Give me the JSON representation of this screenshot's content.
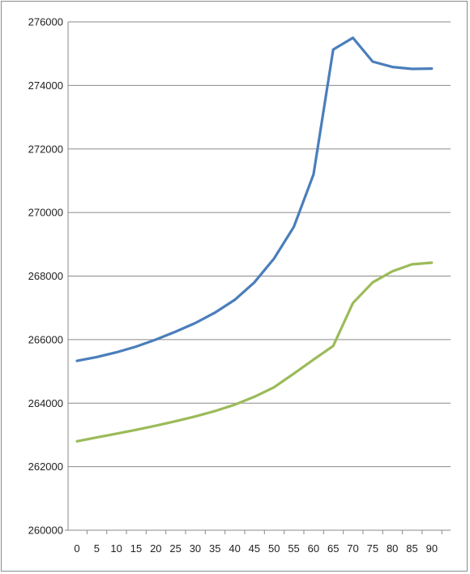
{
  "chart_data": {
    "type": "line",
    "title": "",
    "xlabel": "",
    "ylabel": "",
    "x": [
      0,
      5,
      10,
      15,
      20,
      25,
      30,
      35,
      40,
      45,
      50,
      55,
      60,
      65,
      70,
      75,
      80,
      85,
      90
    ],
    "ylim": [
      260000,
      276000
    ],
    "y_ticks": [
      260000,
      262000,
      264000,
      266000,
      268000,
      270000,
      272000,
      274000,
      276000
    ],
    "grid": true,
    "legend": "none",
    "series": [
      {
        "color": "#4a7ebb",
        "values": [
          265330,
          265450,
          265600,
          265780,
          266000,
          266250,
          266520,
          266850,
          267250,
          267800,
          268550,
          269550,
          271200,
          275130,
          275500,
          274750,
          274580,
          274520,
          274530
        ]
      },
      {
        "color": "#9bbb59",
        "values": [
          262800,
          262920,
          263040,
          263160,
          263290,
          263430,
          263580,
          263750,
          263950,
          264200,
          264500,
          264930,
          265370,
          265800,
          267150,
          267800,
          268150,
          268370,
          268420
        ]
      }
    ]
  }
}
